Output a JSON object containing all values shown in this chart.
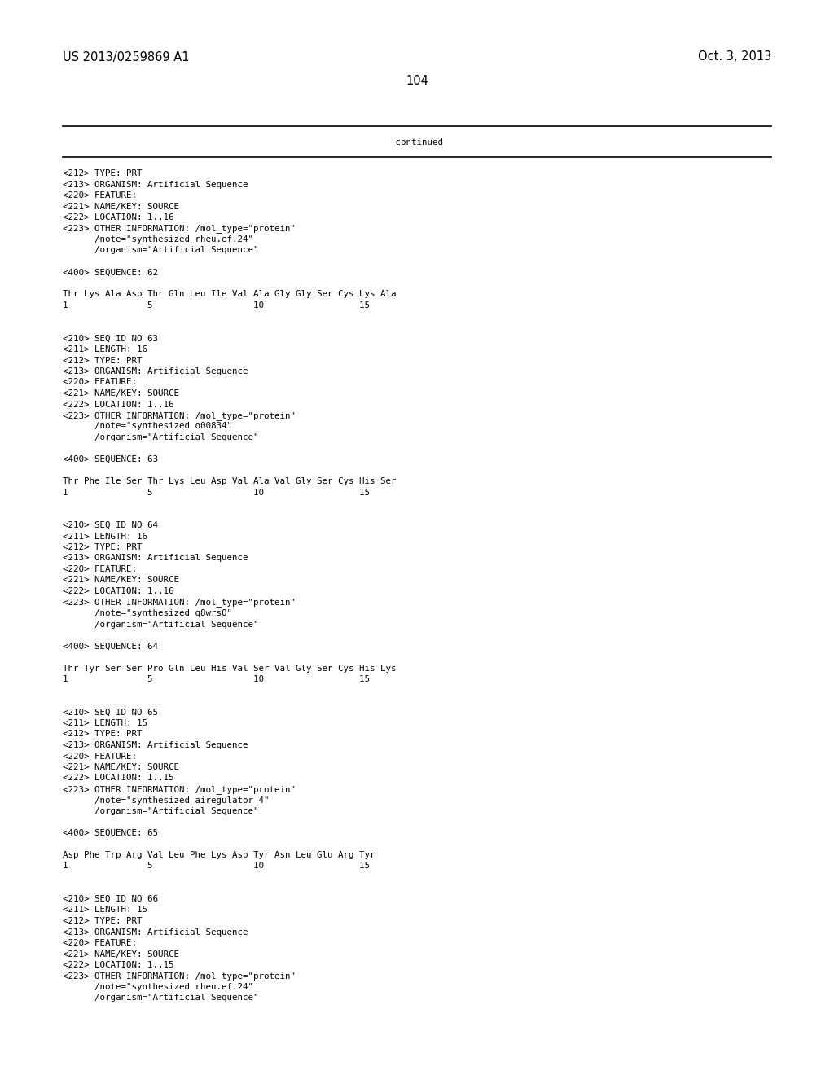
{
  "background_color": "#ffffff",
  "header_left": "US 2013/0259869 A1",
  "header_right": "Oct. 3, 2013",
  "page_number": "104",
  "continued_label": "-continued",
  "line_color": "#000000",
  "font_family": "monospace",
  "header_fontsize": 10.5,
  "body_fontsize": 7.8,
  "lines": [
    "<212> TYPE: PRT",
    "<213> ORGANISM: Artificial Sequence",
    "<220> FEATURE:",
    "<221> NAME/KEY: SOURCE",
    "<222> LOCATION: 1..16",
    "<223> OTHER INFORMATION: /mol_type=\"protein\"",
    "      /note=\"synthesized rheu.ef.24\"",
    "      /organism=\"Artificial Sequence\"",
    "",
    "<400> SEQUENCE: 62",
    "",
    "Thr Lys Ala Asp Thr Gln Leu Ile Val Ala Gly Gly Ser Cys Lys Ala",
    "1               5                   10                  15",
    "",
    "",
    "<210> SEQ ID NO 63",
    "<211> LENGTH: 16",
    "<212> TYPE: PRT",
    "<213> ORGANISM: Artificial Sequence",
    "<220> FEATURE:",
    "<221> NAME/KEY: SOURCE",
    "<222> LOCATION: 1..16",
    "<223> OTHER INFORMATION: /mol_type=\"protein\"",
    "      /note=\"synthesized o00834\"",
    "      /organism=\"Artificial Sequence\"",
    "",
    "<400> SEQUENCE: 63",
    "",
    "Thr Phe Ile Ser Thr Lys Leu Asp Val Ala Val Gly Ser Cys His Ser",
    "1               5                   10                  15",
    "",
    "",
    "<210> SEQ ID NO 64",
    "<211> LENGTH: 16",
    "<212> TYPE: PRT",
    "<213> ORGANISM: Artificial Sequence",
    "<220> FEATURE:",
    "<221> NAME/KEY: SOURCE",
    "<222> LOCATION: 1..16",
    "<223> OTHER INFORMATION: /mol_type=\"protein\"",
    "      /note=\"synthesized q8wrs0\"",
    "      /organism=\"Artificial Sequence\"",
    "",
    "<400> SEQUENCE: 64",
    "",
    "Thr Tyr Ser Ser Pro Gln Leu His Val Ser Val Gly Ser Cys His Lys",
    "1               5                   10                  15",
    "",
    "",
    "<210> SEQ ID NO 65",
    "<211> LENGTH: 15",
    "<212> TYPE: PRT",
    "<213> ORGANISM: Artificial Sequence",
    "<220> FEATURE:",
    "<221> NAME/KEY: SOURCE",
    "<222> LOCATION: 1..15",
    "<223> OTHER INFORMATION: /mol_type=\"protein\"",
    "      /note=\"synthesized airegulator_4\"",
    "      /organism=\"Artificial Sequence\"",
    "",
    "<400> SEQUENCE: 65",
    "",
    "Asp Phe Trp Arg Val Leu Phe Lys Asp Tyr Asn Leu Glu Arg Tyr",
    "1               5                   10                  15",
    "",
    "",
    "<210> SEQ ID NO 66",
    "<211> LENGTH: 15",
    "<212> TYPE: PRT",
    "<213> ORGANISM: Artificial Sequence",
    "<220> FEATURE:",
    "<221> NAME/KEY: SOURCE",
    "<222> LOCATION: 1..15",
    "<223> OTHER INFORMATION: /mol_type=\"protein\"",
    "      /note=\"synthesized rheu.ef.24\"",
    "      /organism=\"Artificial Sequence\""
  ]
}
